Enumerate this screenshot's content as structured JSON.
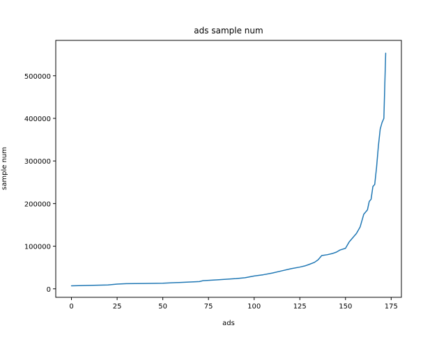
{
  "chart_data": {
    "type": "line",
    "title": "ads sample num",
    "xlabel": "ads",
    "ylabel": "sample num",
    "xlim": [
      -8.6,
      180.6
    ],
    "ylim": [
      -20000,
      583000
    ],
    "x_ticks": [
      0,
      25,
      50,
      75,
      100,
      125,
      150,
      175
    ],
    "y_ticks": [
      0,
      100000,
      200000,
      300000,
      400000,
      500000
    ],
    "x_tick_labels": [
      "0",
      "25",
      "50",
      "75",
      "100",
      "125",
      "150",
      "175"
    ],
    "y_tick_labels": [
      "0",
      "100000",
      "200000",
      "300000",
      "400000",
      "500000"
    ],
    "grid": false,
    "series": [
      {
        "color": "#1f77b4",
        "x": [
          0,
          10,
          20,
          25,
          30,
          40,
          50,
          60,
          70,
          72,
          80,
          90,
          95,
          100,
          105,
          110,
          115,
          120,
          125,
          128,
          130,
          133,
          135,
          137,
          140,
          143,
          145,
          147,
          150,
          152,
          154,
          156,
          158,
          160,
          162,
          163,
          164,
          165,
          166,
          167,
          168,
          169,
          170,
          171,
          172
        ],
        "y": [
          7000,
          8000,
          9000,
          11000,
          12000,
          12500,
          13000,
          15000,
          17000,
          19000,
          21000,
          24000,
          26000,
          30000,
          33000,
          37000,
          42000,
          47000,
          51000,
          54000,
          57000,
          62000,
          68000,
          78000,
          80000,
          83000,
          86000,
          91000,
          95000,
          110000,
          120000,
          130000,
          145000,
          175000,
          185000,
          205000,
          210000,
          240000,
          245000,
          285000,
          335000,
          375000,
          390000,
          400000,
          553000
        ]
      }
    ]
  }
}
